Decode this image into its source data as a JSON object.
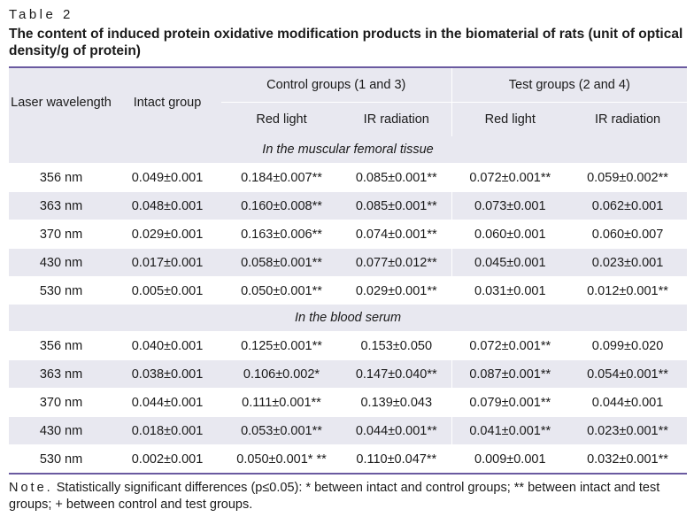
{
  "table_label": "Table 2",
  "title": "The content of induced protein oxidative modification products in the biomaterial of rats (unit of optical density/g of protein)",
  "headers": {
    "wavelength": "Laser wavelength",
    "intact": "Intact group",
    "control": "Control groups (1 and 3)",
    "test": "Test groups (2 and 4)",
    "red": "Red light",
    "ir": "IR radiation"
  },
  "sections": [
    {
      "title": "In the muscular femoral tissue",
      "rows": [
        [
          "356 nm",
          "0.049±0.001",
          "0.184±0.007**",
          "0.085±0.001**",
          "0.072±0.001**",
          "0.059±0.002**"
        ],
        [
          "363 nm",
          "0.048±0.001",
          "0.160±0.008**",
          "0.085±0.001**",
          "0.073±0.001",
          "0.062±0.001"
        ],
        [
          "370 nm",
          "0.029±0.001",
          "0.163±0.006**",
          "0.074±0.001**",
          "0.060±0.001",
          "0.060±0.007"
        ],
        [
          "430 nm",
          "0.017±0.001",
          "0.058±0.001**",
          "0.077±0.012**",
          "0.045±0.001",
          "0.023±0.001"
        ],
        [
          "530 nm",
          "0.005±0.001",
          "0.050±0.001**",
          "0.029±0.001**",
          "0.031±0.001",
          "0.012±0.001**"
        ]
      ]
    },
    {
      "title": "In the blood serum",
      "rows": [
        [
          "356 nm",
          "0.040±0.001",
          "0.125±0.001**",
          "0.153±0.050",
          "0.072±0.001**",
          "0.099±0.020"
        ],
        [
          "363 nm",
          "0.038±0.001",
          "0.106±0.002*",
          "0.147±0.040**",
          "0.087±0.001**",
          "0.054±0.001**"
        ],
        [
          "370 nm",
          "0.044±0.001",
          "0.111±0.001**",
          "0.139±0.043",
          "0.079±0.001**",
          "0.044±0.001"
        ],
        [
          "430 nm",
          "0.018±0.001",
          "0.053±0.001**",
          "0.044±0.001**",
          "0.041±0.001**",
          "0.023±0.001**"
        ],
        [
          "530 nm",
          "0.002±0.001",
          "0.050±0.001* **",
          "0.110±0.047**",
          "0.009±0.001",
          "0.032±0.001**"
        ]
      ]
    }
  ],
  "note_label": "Note.",
  "note_text": "Statistically significant differences (p≤0.05): * between intact and control groups; ** between intact and test groups; + between control and test groups."
}
